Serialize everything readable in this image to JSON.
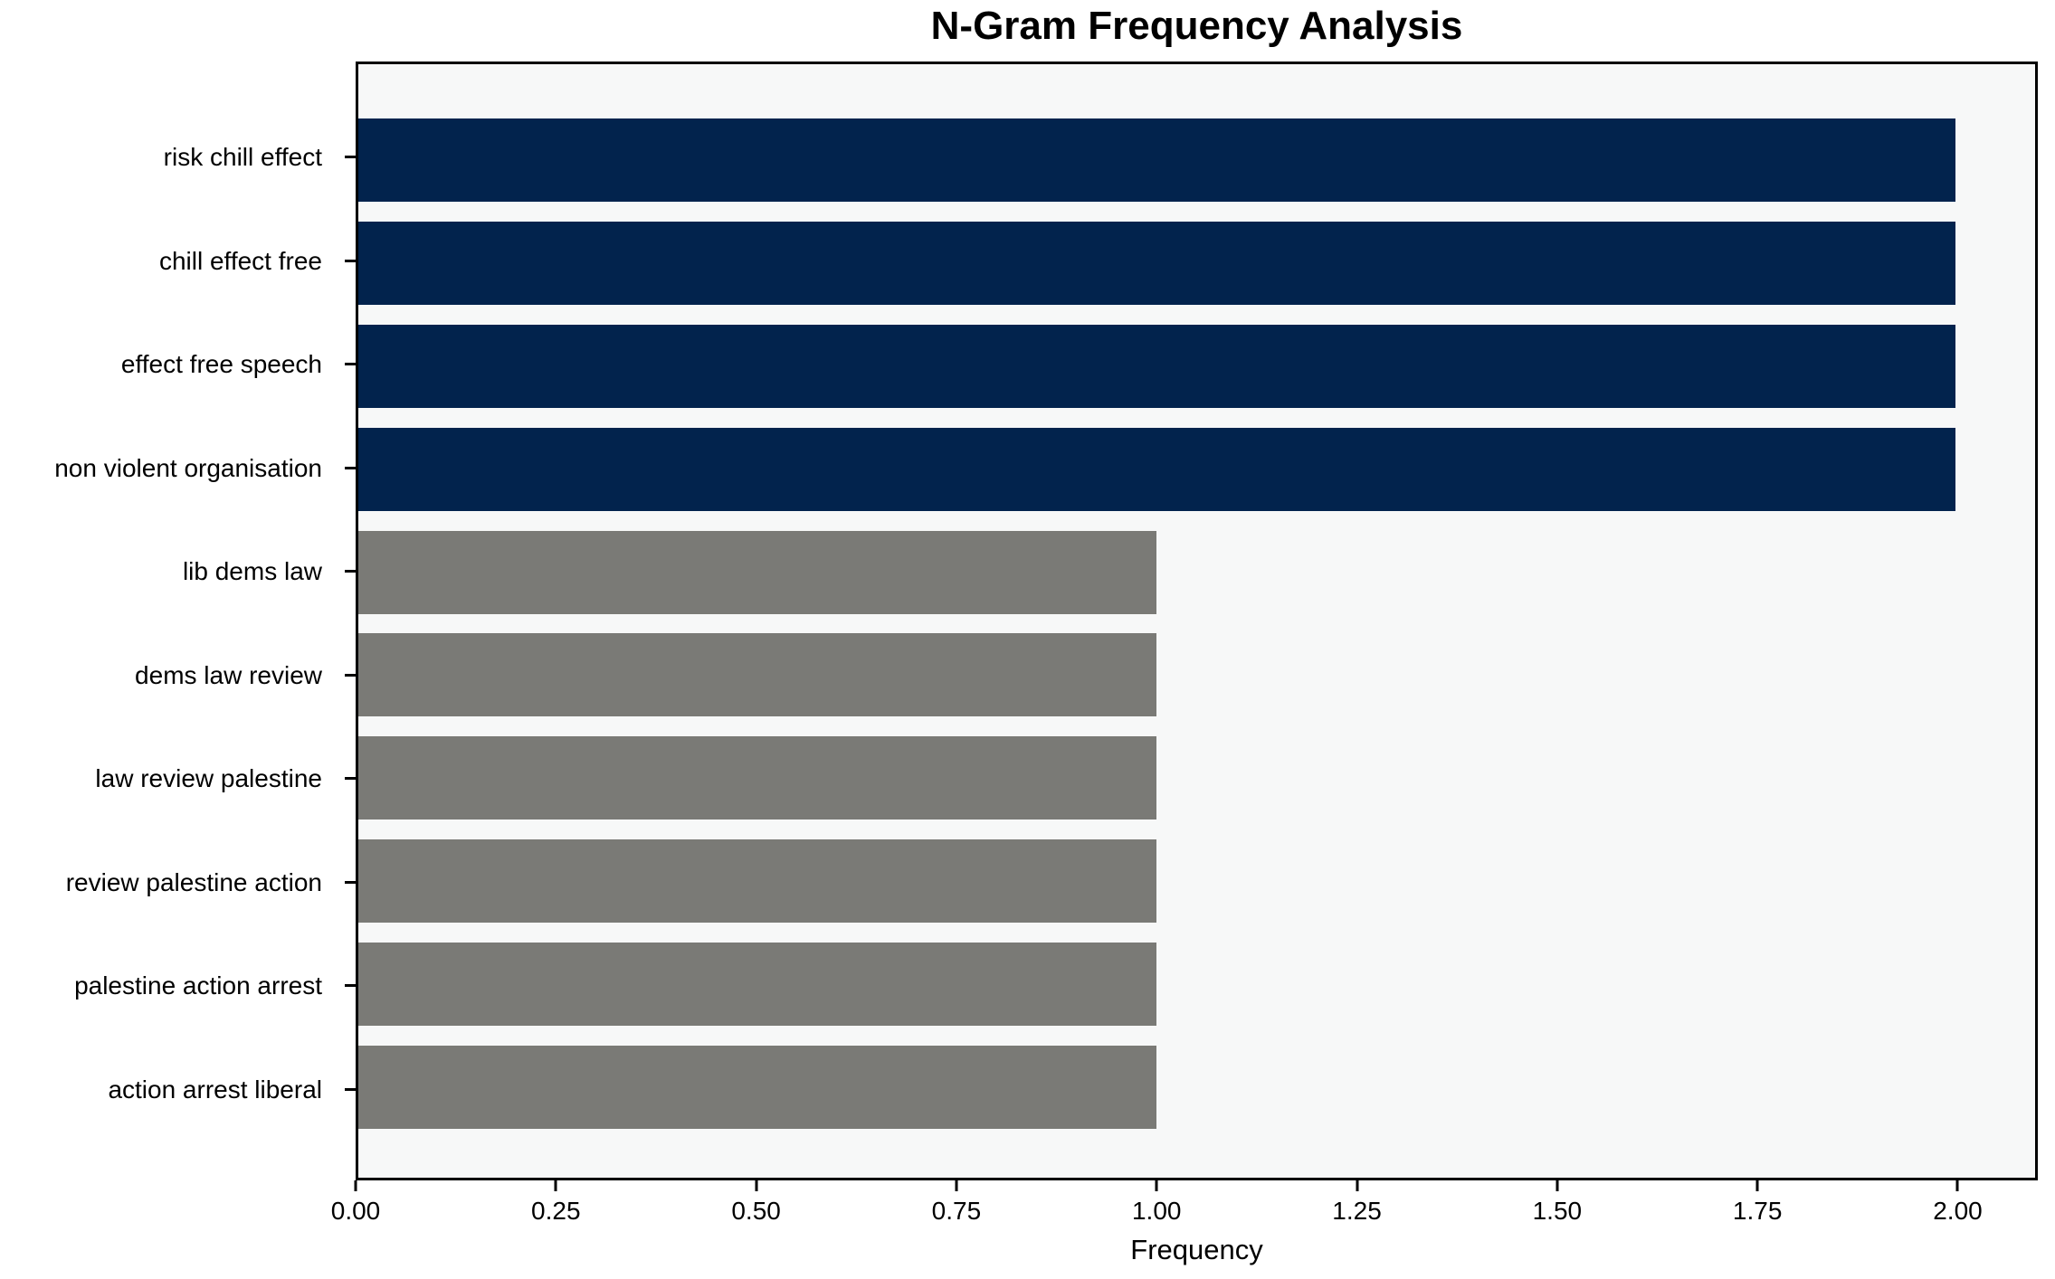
{
  "title": "N-Gram Frequency Analysis",
  "chart_data": {
    "type": "bar",
    "orientation": "horizontal",
    "title": "N-Gram Frequency Analysis",
    "xlabel": "Frequency",
    "ylabel": "",
    "categories": [
      "risk chill effect",
      "chill effect free",
      "effect free speech",
      "non violent organisation",
      "lib dems law",
      "dems law review",
      "law review palestine",
      "review palestine action",
      "palestine action arrest",
      "action arrest liberal"
    ],
    "values": [
      2,
      2,
      2,
      2,
      1,
      1,
      1,
      1,
      1,
      1
    ],
    "bar_colors": [
      "#02234d",
      "#02234d",
      "#02234d",
      "#02234d",
      "#7a7a76",
      "#7a7a76",
      "#7a7a76",
      "#7a7a76",
      "#7a7a76",
      "#7a7a76"
    ],
    "xlim": [
      0,
      2.1
    ],
    "xticks": [
      0,
      0.25,
      0.5,
      0.75,
      1.0,
      1.25,
      1.5,
      1.75,
      2.0
    ],
    "xtick_labels": [
      "0.00",
      "0.25",
      "0.50",
      "0.75",
      "1.00",
      "1.25",
      "1.50",
      "1.75",
      "2.00"
    ],
    "grid": false,
    "legend": null,
    "colors": {
      "high_frequency_bar": "#02234d",
      "low_frequency_bar": "#7a7a76",
      "plot_background": "#f7f8f8",
      "figure_background": "#ffffff",
      "spine": "#000000",
      "text": "#000000"
    }
  }
}
